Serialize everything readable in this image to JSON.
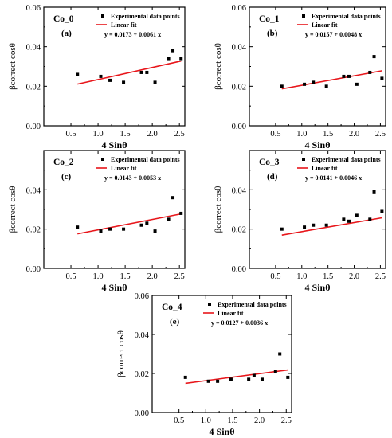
{
  "chart_data": [
    {
      "type": "scatter",
      "title": "Co_0",
      "panel_label": "(a)",
      "xlabel": "4 Sinθ",
      "ylabel": "βcorrect cosθ",
      "xlim": [
        0.0,
        2.6
      ],
      "ylim": [
        0.0,
        0.06
      ],
      "xticks": [
        "0.5",
        "1.0",
        "1.5",
        "2.0",
        "2.5"
      ],
      "yticks": [
        "0.00",
        "0.02",
        "0.04",
        "0.06"
      ],
      "legend_position": "top-right",
      "legend": [
        "Experimental data points",
        "Linear fit"
      ],
      "equation": "y = 0.0173 + 0.0061 x",
      "fit": {
        "intercept": 0.0173,
        "slope": 0.0061,
        "x_range": [
          0.62,
          2.53
        ]
      },
      "series": [
        {
          "name": "Experimental data points",
          "x": [
            0.62,
            1.05,
            1.22,
            1.47,
            1.8,
            1.9,
            2.05,
            2.3,
            2.38,
            2.53
          ],
          "y": [
            0.026,
            0.025,
            0.023,
            0.022,
            0.027,
            0.027,
            0.022,
            0.034,
            0.038,
            0.034
          ]
        }
      ]
    },
    {
      "type": "scatter",
      "title": "Co_1",
      "panel_label": "(b)",
      "xlabel": "4 Sinθ",
      "ylabel": "βcorrect cosθ",
      "xlim": [
        0.0,
        2.6
      ],
      "ylim": [
        0.0,
        0.06
      ],
      "xticks": [
        "0.5",
        "1.0",
        "1.5",
        "2.0",
        "2.5"
      ],
      "yticks": [
        "0.00",
        "0.02",
        "0.04",
        "0.06"
      ],
      "legend_position": "top-right",
      "legend": [
        "Experimental data points",
        "Linear fit"
      ],
      "equation": "y = 0.0157 + 0.0048 x",
      "fit": {
        "intercept": 0.0157,
        "slope": 0.0048,
        "x_range": [
          0.62,
          2.53
        ]
      },
      "series": [
        {
          "name": "Experimental data points",
          "x": [
            0.62,
            1.05,
            1.22,
            1.47,
            1.8,
            1.9,
            2.05,
            2.3,
            2.38,
            2.53
          ],
          "y": [
            0.02,
            0.021,
            0.022,
            0.02,
            0.025,
            0.025,
            0.021,
            0.027,
            0.035,
            0.024
          ]
        }
      ]
    },
    {
      "type": "scatter",
      "title": "Co_2",
      "panel_label": "(c)",
      "xlabel": "4 Sinθ",
      "ylabel": "βcorrect cosθ",
      "xlim": [
        0.0,
        2.6
      ],
      "ylim": [
        0.0,
        0.06
      ],
      "xticks": [
        "0.5",
        "1.0",
        "1.5",
        "2.0",
        "2.5"
      ],
      "yticks": [
        "0.00",
        "0.02",
        "0.04"
      ],
      "legend_position": "top-right",
      "legend": [
        "Experimental data points",
        "Linear fit"
      ],
      "equation": "y = 0.0143 + 0.0053 x",
      "fit": {
        "intercept": 0.0143,
        "slope": 0.0053,
        "x_range": [
          0.62,
          2.53
        ]
      },
      "series": [
        {
          "name": "Experimental data points",
          "x": [
            0.62,
            1.05,
            1.22,
            1.47,
            1.8,
            1.9,
            2.05,
            2.3,
            2.38,
            2.53
          ],
          "y": [
            0.021,
            0.019,
            0.02,
            0.02,
            0.022,
            0.023,
            0.019,
            0.025,
            0.036,
            0.028
          ]
        }
      ]
    },
    {
      "type": "scatter",
      "title": "Co_3",
      "panel_label": "(d)",
      "xlabel": "4 Sinθ",
      "ylabel": "βcorrect cosθ",
      "xlim": [
        0.0,
        2.6
      ],
      "ylim": [
        0.0,
        0.06
      ],
      "xticks": [
        "0.5",
        "1.0",
        "1.5",
        "2.0",
        "2.5"
      ],
      "yticks": [
        "0.00",
        "0.02",
        "0.04"
      ],
      "legend_position": "top-right",
      "legend": [
        "Experimental data points",
        "Linear fit"
      ],
      "equation": "y = 0.0141 + 0.0046 x",
      "fit": {
        "intercept": 0.0141,
        "slope": 0.0046,
        "x_range": [
          0.62,
          2.53
        ]
      },
      "series": [
        {
          "name": "Experimental data points",
          "x": [
            0.62,
            1.05,
            1.22,
            1.47,
            1.8,
            1.9,
            2.05,
            2.3,
            2.38,
            2.53
          ],
          "y": [
            0.02,
            0.021,
            0.022,
            0.022,
            0.025,
            0.024,
            0.027,
            0.025,
            0.039,
            0.029
          ]
        }
      ]
    },
    {
      "type": "scatter",
      "title": "Co_4",
      "panel_label": "(e)",
      "xlabel": "4 Sinθ",
      "ylabel": "βcorrect cosθ",
      "xlim": [
        0.0,
        2.6
      ],
      "ylim": [
        0.0,
        0.06
      ],
      "xticks": [
        "0.5",
        "1.0",
        "1.5",
        "2.0",
        "2.5"
      ],
      "yticks": [
        "0.00",
        "0.02",
        "0.04",
        "0.06"
      ],
      "legend_position": "top-right",
      "legend": [
        "Experimental data points",
        "Linear fit"
      ],
      "equation": "y = 0.0127 + 0.0036 x",
      "fit": {
        "intercept": 0.0127,
        "slope": 0.0036,
        "x_range": [
          0.62,
          2.53
        ]
      },
      "series": [
        {
          "name": "Experimental data points",
          "x": [
            0.62,
            1.05,
            1.22,
            1.47,
            1.8,
            1.9,
            2.05,
            2.3,
            2.38,
            2.53
          ],
          "y": [
            0.018,
            0.016,
            0.016,
            0.017,
            0.017,
            0.019,
            0.017,
            0.021,
            0.03,
            0.018
          ]
        }
      ]
    }
  ],
  "colors": {
    "points": "#000000",
    "fit_line": "#e8161b",
    "axes": "#000000"
  }
}
